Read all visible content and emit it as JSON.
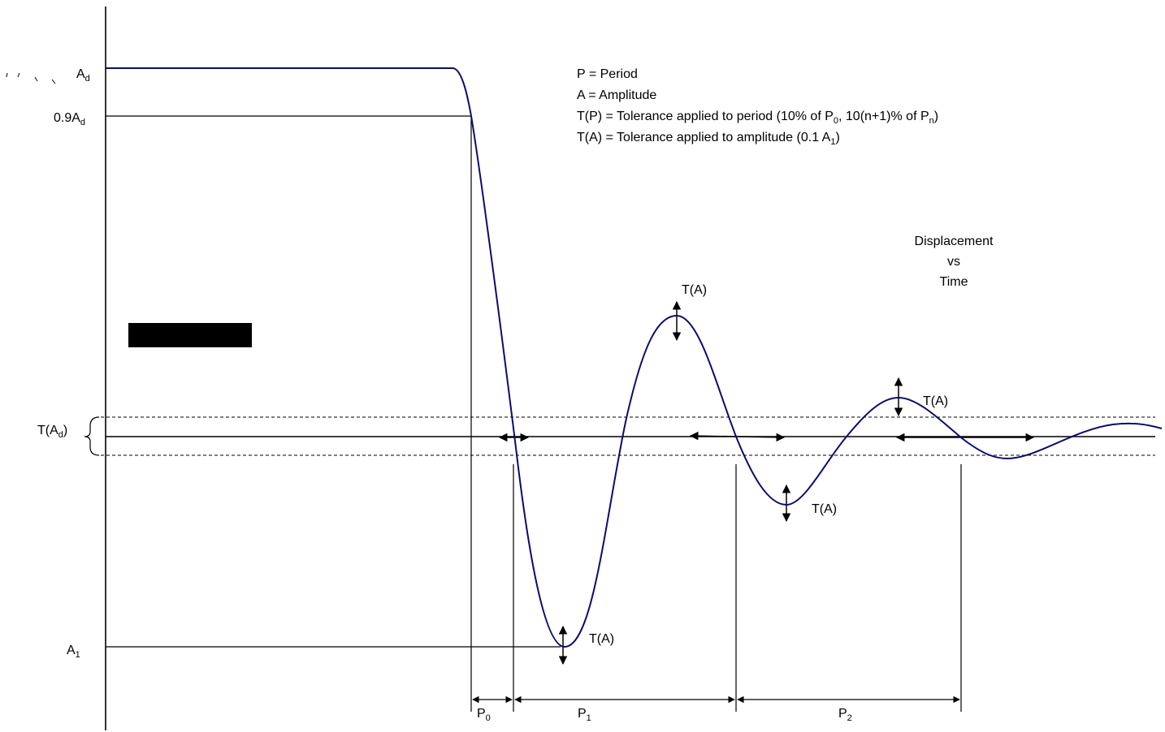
{
  "legend": {
    "line1": "P = Period",
    "line2": "A = Amplitude",
    "line3_prefix": "T(P) = Tolerance applied to period (10% of P",
    "line3_sub1": "0",
    "line3_mid": ", 10(n+1)% of P",
    "line3_sub2": "n",
    "line3_suffix": ")",
    "line4_prefix": "T(A) = Tolerance applied to amplitude  (0.1 A",
    "line4_sub": "1",
    "line4_suffix": ")"
  },
  "title": {
    "line1": "Displacement",
    "line2": "vs",
    "line3": "Time"
  },
  "labels": {
    "ad_main": "A",
    "ad_sub": "d",
    "ad90_main": "0.9A",
    "ad90_sub": "d",
    "tad_prefix": "T(A",
    "tad_sub": "d",
    "tad_suffix": ")",
    "a1_main": "A",
    "a1_sub": "1",
    "ta": "T(A)",
    "p0_main": "P",
    "p0_sub": "0",
    "p1_main": "P",
    "p1_sub": "1",
    "p2_main": "P",
    "p2_sub": "2"
  },
  "colors": {
    "curve": "#0c0c6e",
    "lines": "#000000"
  }
}
